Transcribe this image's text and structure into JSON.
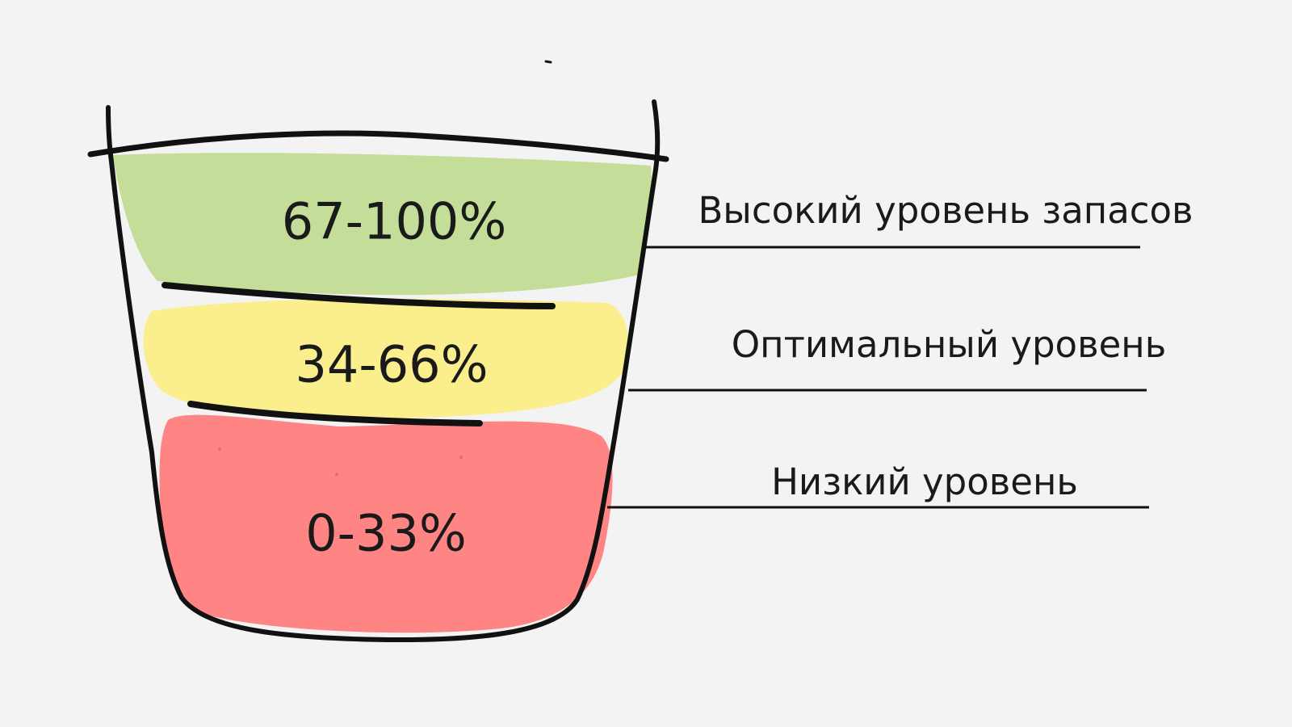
{
  "levels": [
    {
      "range": "67-100%",
      "label": "Высокий уровень запасов",
      "color": "#c4dd98"
    },
    {
      "range": "34-66%",
      "label": "Оптимальный уровень",
      "color": "#fbee8d"
    },
    {
      "range": "0-33%",
      "label": "Низкий уровень",
      "color": "#ff8585"
    }
  ],
  "colors": {
    "background": "#f3f3f3",
    "outline": "#111111",
    "high": "#c4dd98",
    "optimal": "#fbee8d",
    "low": "#ff8585"
  }
}
